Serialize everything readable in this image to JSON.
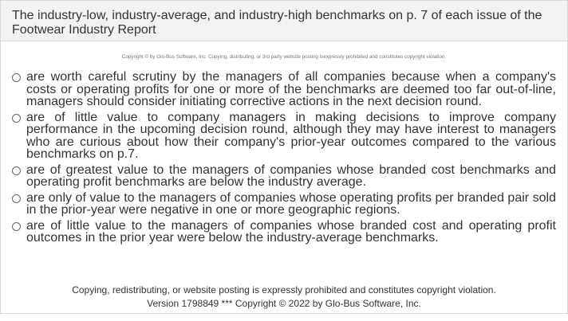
{
  "question": {
    "text": "The industry-low, industry-average, and industry-high benchmarks on p. 7 of each issue of the Footwear Industry Report"
  },
  "copyright_small": "Copyright © by Glo-Bus Software, Inc. Copying, distributing, or 3rd party website posting isexpressly prohibited and constitutes copyright violation.",
  "options": [
    {
      "text": "are worth careful scrutiny by the managers of all companies because when a company's costs or operating profits for one or more of the benchmarks are deemed too far out-of-line, managers should consider initiating corrective actions in the next decision round.",
      "selected": false
    },
    {
      "text": "are of little value to company managers in making decisions to improve company performance in the upcoming decision round, although they may have interest to managers who are curious about how their company's prior-year outcomes compared to the various benchmarks on p.7.",
      "selected": false
    },
    {
      "text": "are of greatest value to the managers of companies whose branded cost benchmarks and operating profit benchmarks are below the industry average.",
      "selected": false
    },
    {
      "text": "are only of value to the managers of companies whose operating profits per branded pair sold in the prior-year were negative in one or more geographic regions.",
      "selected": false
    },
    {
      "text": "are of little value to the managers of companies whose branded cost and operating profit outcomes in the prior year were below the industry-average benchmarks.",
      "selected": false
    }
  ],
  "footer": {
    "line1": "Copying, redistributing, or website posting is expressly prohibited and constitutes copyright violation.",
    "line2": "Version 1798849 *** Copyright © 2022 by Glo-Bus Software, Inc."
  }
}
